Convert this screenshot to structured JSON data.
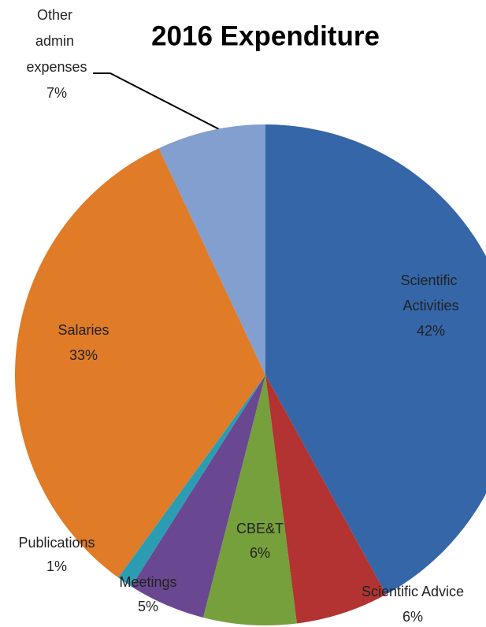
{
  "chart_data": {
    "type": "pie",
    "title": "2016 Expenditure",
    "categories": [
      "Scientific Activities",
      "Scientific Advice",
      "CBE&T",
      "Meetings",
      "Publications",
      "Salaries",
      "Other admin expenses"
    ],
    "values": [
      42,
      6,
      6,
      5,
      1,
      33,
      7
    ],
    "value_labels": [
      "42%",
      "6%",
      "6%",
      "5%",
      "1%",
      "33%",
      "7%"
    ],
    "colors": [
      "#3466a8",
      "#b23331",
      "#76a03b",
      "#6a4791",
      "#2b9db2",
      "#e07b27",
      "#829fcf"
    ]
  }
}
